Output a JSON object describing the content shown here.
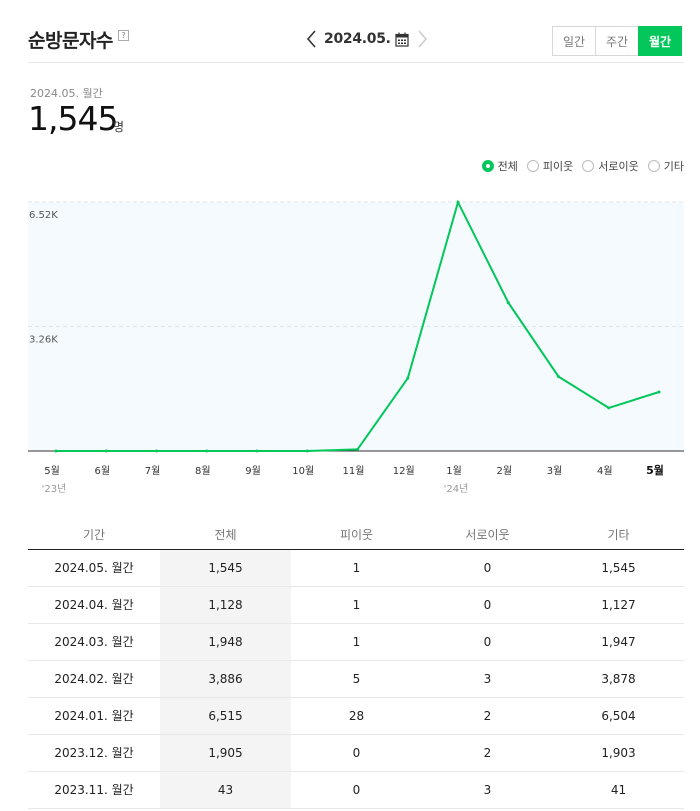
{
  "header": {
    "title": "순방문자수",
    "help_icon": "?",
    "current_period": "2024.05.",
    "tabs": [
      {
        "label": "일간",
        "active": false
      },
      {
        "label": "주간",
        "active": false
      },
      {
        "label": "월간",
        "active": true
      }
    ]
  },
  "summary": {
    "label": "2024.05. 월간",
    "value": "1,545",
    "unit": "명"
  },
  "legend": [
    {
      "label": "전체",
      "checked": true
    },
    {
      "label": "피이웃",
      "checked": false
    },
    {
      "label": "서로이웃",
      "checked": false
    },
    {
      "label": "기타",
      "checked": false
    }
  ],
  "colors": {
    "accent": "#03c75a",
    "chart_bg": "#f5fafe"
  },
  "chart_data": {
    "type": "line",
    "categories": [
      "5월",
      "6월",
      "7월",
      "8월",
      "9월",
      "10월",
      "11월",
      "12월",
      "1월",
      "2월",
      "3월",
      "4월",
      "5월"
    ],
    "year_labels": [
      {
        "index": 0,
        "label": "'23년"
      },
      {
        "index": 8,
        "label": "'24년"
      }
    ],
    "series": [
      {
        "values": [
          0,
          0,
          0,
          0,
          0,
          0,
          43,
          1905,
          6515,
          3886,
          1948,
          1128,
          1545
        ]
      }
    ],
    "y_ticks": [
      {
        "value": 3260,
        "label": "3.26K"
      },
      {
        "value": 6520,
        "label": "6.52K"
      }
    ],
    "ylim": [
      0,
      6520
    ],
    "grid": true,
    "highlight_category_index": 12
  },
  "table": {
    "headers": [
      "기간",
      "전체",
      "피이웃",
      "서로이웃",
      "기타"
    ],
    "rows": [
      [
        "2024.05. 월간",
        "1,545",
        "1",
        "0",
        "1,545"
      ],
      [
        "2024.04. 월간",
        "1,128",
        "1",
        "0",
        "1,127"
      ],
      [
        "2024.03. 월간",
        "1,948",
        "1",
        "0",
        "1,947"
      ],
      [
        "2024.02. 월간",
        "3,886",
        "5",
        "3",
        "3,878"
      ],
      [
        "2024.01. 월간",
        "6,515",
        "28",
        "2",
        "6,504"
      ],
      [
        "2023.12. 월간",
        "1,905",
        "0",
        "2",
        "1,903"
      ],
      [
        "2023.11. 월간",
        "43",
        "0",
        "3",
        "41"
      ]
    ]
  }
}
